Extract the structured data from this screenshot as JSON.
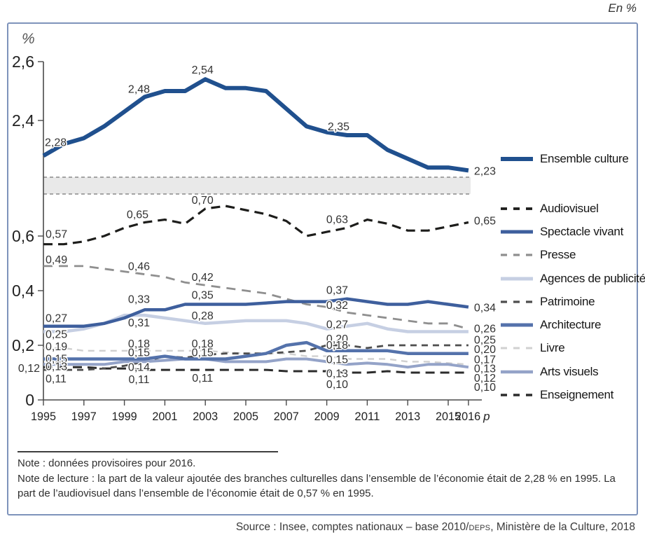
{
  "meta": {
    "unit_label": "En %",
    "axis_unit": "%"
  },
  "notes": {
    "note1": "Note : données provisoires pour 2016.",
    "note2": "Note de lecture : la part de la valeur ajoutée des branches culturelles dans l’ensemble de l’économie était de 2,28 % en 1995. La part de l’audiovisuel dans l’ensemble de l’économie était de 0,57 % en 1995."
  },
  "source": {
    "prefix": "Source : Insee, comptes nationaux – base 2010/",
    "smallcaps": "deps",
    "suffix": ", Ministère de la Culture, 2018"
  },
  "chart_data": {
    "type": "line",
    "x": [
      1995,
      1996,
      1997,
      1998,
      1999,
      2000,
      2001,
      2002,
      2003,
      2004,
      2005,
      2006,
      2007,
      2008,
      2009,
      2010,
      2011,
      2012,
      2013,
      2014,
      2015,
      2016
    ],
    "x_ticks": [
      {
        "year": 1995,
        "label": "1995"
      },
      {
        "year": 1997,
        "label": "1997"
      },
      {
        "year": 1999,
        "label": "1999"
      },
      {
        "year": 2001,
        "label": "2001"
      },
      {
        "year": 2003,
        "label": "2003"
      },
      {
        "year": 2005,
        "label": "2005"
      },
      {
        "year": 2007,
        "label": "2007"
      },
      {
        "year": 2009,
        "label": "2009"
      },
      {
        "year": 2011,
        "label": "2011"
      },
      {
        "year": 2013,
        "label": "2013"
      },
      {
        "year": 2015,
        "label": "2015"
      },
      {
        "year": 2016,
        "label": "2016",
        "italic_suffix": "p"
      }
    ],
    "y_axis": {
      "axis_break": true,
      "lower_ticks": [
        {
          "label": "0",
          "value": 0
        },
        {
          "label": "0,2",
          "value": 0.2
        },
        {
          "label": "0,4",
          "value": 0.4
        },
        {
          "label": "0,6",
          "value": 0.6
        }
      ],
      "upper_ticks": [
        {
          "label": "2,4",
          "value": 2.4
        },
        {
          "label": "2,6",
          "value": 2.6
        }
      ]
    },
    "series": [
      {
        "id": "ensemble-culture",
        "label": "Ensemble culture",
        "color": "#20508e",
        "width": 6,
        "dash": null,
        "scale": "upper",
        "values": [
          2.28,
          2.32,
          2.34,
          2.38,
          2.43,
          2.48,
          2.5,
          2.5,
          2.54,
          2.51,
          2.51,
          2.5,
          2.44,
          2.38,
          2.36,
          2.35,
          2.35,
          2.3,
          2.27,
          2.24,
          2.24,
          2.23
        ],
        "labels": [
          [
            1995,
            "2,28",
            2,
            -14,
            "s"
          ],
          [
            2000,
            "2,48",
            -8,
            -6,
            "m"
          ],
          [
            2003,
            "2,54",
            -4,
            -8,
            "m"
          ],
          [
            2010,
            "2,35",
            -12,
            -7,
            "m"
          ],
          [
            2016,
            "2,23",
            8,
            6,
            "s"
          ]
        ]
      },
      {
        "id": "audiovisuel",
        "label": "Audiovisuel",
        "color": "#1d1d1b",
        "width": 3.2,
        "dash": "13,8",
        "scale": "lower",
        "values": [
          0.57,
          0.57,
          0.58,
          0.6,
          0.63,
          0.65,
          0.66,
          0.645,
          0.7,
          0.71,
          0.695,
          0.68,
          0.655,
          0.6,
          0.615,
          0.63,
          0.66,
          0.645,
          0.62,
          0.62,
          0.635,
          0.65
        ],
        "labels": [
          [
            1995,
            "0,57",
            3,
            -9,
            "s"
          ],
          [
            2000,
            "0,65",
            -10,
            -6,
            "m"
          ],
          [
            2003,
            "0,70",
            -4,
            -7,
            "m"
          ],
          [
            2010,
            "0,63",
            -14,
            -7,
            "m"
          ],
          [
            2016,
            "0,65",
            8,
            3,
            "s"
          ]
        ]
      },
      {
        "id": "spectacle-vivant",
        "label": "Spectacle vivant",
        "color": "#3e5f9d",
        "width": 4.5,
        "dash": null,
        "scale": "lower",
        "values": [
          0.27,
          0.27,
          0.27,
          0.28,
          0.3,
          0.33,
          0.33,
          0.35,
          0.35,
          0.35,
          0.35,
          0.355,
          0.36,
          0.36,
          0.36,
          0.37,
          0.36,
          0.35,
          0.35,
          0.36,
          0.35,
          0.34
        ],
        "labels": [
          [
            1995,
            "0,27",
            3,
            -6,
            "s"
          ],
          [
            2000,
            "0,33",
            -8,
            -10,
            "m"
          ],
          [
            2003,
            "0,35",
            -4,
            -8,
            "m"
          ],
          [
            2010,
            "0,37",
            -14,
            -7,
            "m"
          ],
          [
            2016,
            "0,34",
            8,
            6,
            "s"
          ]
        ]
      },
      {
        "id": "presse",
        "label": "Presse",
        "color": "#8f8f8f",
        "width": 2.8,
        "dash": "13,9",
        "scale": "lower",
        "values": [
          0.49,
          0.49,
          0.49,
          0.48,
          0.47,
          0.46,
          0.45,
          0.43,
          0.42,
          0.41,
          0.4,
          0.39,
          0.37,
          0.35,
          0.34,
          0.32,
          0.31,
          0.3,
          0.29,
          0.28,
          0.28,
          0.26
        ],
        "labels": [
          [
            1995,
            "0,49",
            3,
            -4,
            "s"
          ],
          [
            2000,
            "0,46",
            -8,
            -6,
            "m"
          ],
          [
            2003,
            "0,42",
            -4,
            -6,
            "m"
          ],
          [
            2010,
            "0,32",
            -14,
            -5,
            "m"
          ],
          [
            2016,
            "0,26",
            8,
            5,
            "s"
          ]
        ]
      },
      {
        "id": "agences-de-publicite",
        "label": "Agences de publicité",
        "color": "#c6cfe3",
        "width": 4.5,
        "dash": null,
        "scale": "lower",
        "values": [
          0.25,
          0.25,
          0.26,
          0.28,
          0.31,
          0.31,
          0.3,
          0.29,
          0.28,
          0.285,
          0.29,
          0.29,
          0.29,
          0.28,
          0.26,
          0.27,
          0.28,
          0.26,
          0.25,
          0.25,
          0.25,
          0.25
        ],
        "labels": [
          [
            1995,
            "0,25",
            3,
            9,
            "s"
          ],
          [
            2000,
            "0,31",
            -8,
            16,
            "m"
          ],
          [
            2003,
            "0,28",
            -4,
            -6,
            "m"
          ],
          [
            2010,
            "0,27",
            -14,
            3,
            "m"
          ],
          [
            2016,
            "0,25",
            8,
            17,
            "s"
          ]
        ]
      },
      {
        "id": "patrimoine",
        "label": "Patrimoine",
        "color": "#4e4e4e",
        "width": 2.8,
        "dash": "9,7",
        "scale": "lower",
        "values": [
          0.11,
          0.11,
          0.11,
          0.115,
          0.125,
          0.14,
          0.16,
          0.155,
          0.165,
          0.17,
          0.17,
          0.17,
          0.175,
          0.18,
          0.2,
          0.2,
          0.19,
          0.2,
          0.2,
          0.2,
          0.2,
          0.2
        ],
        "labels": [
          [
            1995,
            "0,11",
            3,
            18,
            "s"
          ],
          [
            2000,
            "0,14",
            -8,
            13,
            "m"
          ],
          [
            2010,
            "0,20",
            -14,
            -4,
            "m"
          ],
          [
            2016,
            "0,20",
            8,
            11,
            "s"
          ]
        ]
      },
      {
        "id": "architecture",
        "label": "Architecture",
        "color": "#5472ab",
        "width": 4.5,
        "dash": null,
        "scale": "lower",
        "values": [
          0.15,
          0.15,
          0.15,
          0.15,
          0.15,
          0.15,
          0.16,
          0.15,
          0.15,
          0.15,
          0.16,
          0.17,
          0.2,
          0.21,
          0.18,
          0.18,
          0.18,
          0.18,
          0.17,
          0.17,
          0.17,
          0.17
        ],
        "labels": [
          [
            1995,
            "0,15",
            3,
            5,
            "s"
          ],
          [
            2000,
            "0,15",
            -8,
            -4,
            "m"
          ],
          [
            2003,
            "0,15",
            -4,
            -4,
            "m"
          ],
          [
            2010,
            "0,18",
            -14,
            -3,
            "m"
          ],
          [
            2016,
            "0,17",
            8,
            14,
            "s"
          ]
        ]
      },
      {
        "id": "livre",
        "label": "Livre",
        "color": "#d0d0d0",
        "width": 2.4,
        "dash": "9,7",
        "scale": "lower",
        "values": [
          0.19,
          0.19,
          0.18,
          0.18,
          0.18,
          0.18,
          0.18,
          0.18,
          0.18,
          0.175,
          0.17,
          0.17,
          0.17,
          0.16,
          0.16,
          0.15,
          0.15,
          0.15,
          0.14,
          0.14,
          0.135,
          0.13
        ],
        "labels": [
          [
            1995,
            "0,19",
            3,
            3,
            "s"
          ],
          [
            2000,
            "0,18",
            -8,
            -5,
            "m"
          ],
          [
            2003,
            "0,18",
            -4,
            -5,
            "m"
          ],
          [
            2010,
            "0,15",
            -14,
            6,
            "m"
          ],
          [
            2016,
            "0,13",
            8,
            11,
            "s"
          ]
        ]
      },
      {
        "id": "arts-visuels",
        "label": "Arts visuels",
        "color": "#94a3c8",
        "width": 4,
        "dash": null,
        "scale": "lower",
        "values": [
          0.13,
          0.13,
          0.13,
          0.13,
          0.14,
          0.14,
          0.145,
          0.15,
          0.15,
          0.14,
          0.14,
          0.14,
          0.15,
          0.15,
          0.14,
          0.13,
          0.135,
          0.13,
          0.12,
          0.13,
          0.13,
          0.12
        ],
        "labels": [
          [
            1995,
            "0,13",
            3,
            8,
            "s"
          ],
          [
            2010,
            "0,13",
            -14,
            18,
            "m"
          ],
          [
            2016,
            "0,12",
            8,
            21,
            "s"
          ]
        ]
      },
      {
        "id": "enseignement",
        "label": "Enseignement",
        "color": "#2c2c2c",
        "width": 3,
        "dash": "13,8",
        "scale": "lower",
        "values": [
          0.12,
          0.12,
          0.12,
          0.115,
          0.115,
          0.11,
          0.11,
          0.11,
          0.11,
          0.11,
          0.11,
          0.11,
          0.105,
          0.105,
          0.105,
          0.1,
          0.1,
          0.105,
          0.1,
          0.1,
          0.1,
          0.1
        ],
        "labels": [
          [
            1995,
            "0,12",
            -5,
            7,
            "e"
          ],
          [
            2000,
            "0,11",
            -8,
            19,
            "m"
          ],
          [
            2003,
            "0,11",
            -4,
            17,
            "m"
          ],
          [
            2010,
            "0,10",
            -14,
            22,
            "m"
          ],
          [
            2016,
            "0,10",
            8,
            26,
            "s"
          ]
        ]
      }
    ],
    "legend_position": "right",
    "grid": false
  }
}
